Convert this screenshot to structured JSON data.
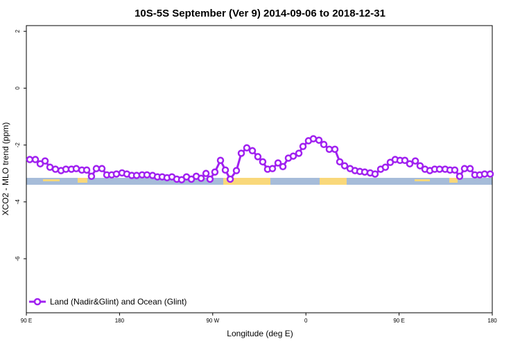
{
  "chart_data": {
    "type": "line",
    "title": "10S-5S September (Ver 9)   2014-09-06 to 2018-12-31",
    "x_label": "Longitude (deg E)",
    "y_label": "XCO2 - MLO trend (ppm)",
    "xlim": [
      90,
      540
    ],
    "ylim": [
      -7.9,
      2.2
    ],
    "xticks": [
      {
        "value": 90,
        "label": "90 E"
      },
      180,
      {
        "value": 270,
        "label": "90 W"
      },
      {
        "value": 360,
        "label": "0"
      },
      {
        "value": 450,
        "label": "90 E"
      },
      180
    ],
    "yticks": [
      2,
      0,
      -2,
      -4,
      -6
    ],
    "legend_position": "lower left",
    "series": [
      {
        "name": "Land (Nadir&Glint) and Ocean (Glint)",
        "color": "#a020f0",
        "x": [
          93.3,
          98.7,
          103.4,
          108.1,
          112.8,
          118.1,
          123.5,
          128.2,
          133.5,
          138.2,
          143.6,
          148.3,
          152.9,
          157.6,
          163.0,
          167.7,
          172.4,
          177.0,
          182.4,
          187.1,
          191.8,
          196.5,
          201.8,
          206.5,
          211.9,
          216.6,
          221.2,
          225.9,
          230.6,
          235.3,
          240.0,
          244.7,
          249.4,
          254.1,
          258.8,
          263.5,
          267.4,
          272.1,
          277.5,
          282.2,
          286.9,
          292.9,
          297.6,
          302.9,
          308.3,
          313.6,
          318.3,
          323.0,
          327.7,
          333.1,
          337.8,
          343.1,
          347.8,
          353.2,
          357.2,
          362.5,
          367.2,
          372.6,
          377.3,
          382.6,
          388.0,
          392.7,
          397.4,
          402.7,
          407.4,
          412.1,
          416.8,
          422.1,
          426.8,
          432.2,
          436.8,
          441.5,
          446.2,
          450.9,
          455.6,
          460.3,
          465.7,
          470.3,
          475.0,
          479.7,
          484.4,
          489.1,
          494.5,
          499.2,
          503.8,
          508.5,
          513.2,
          518.6,
          523.2,
          527.9,
          532.6,
          538.0
        ],
        "values": [
          -2.51,
          -2.51,
          -2.66,
          -2.56,
          -2.78,
          -2.85,
          -2.9,
          -2.85,
          -2.85,
          -2.83,
          -2.88,
          -2.88,
          -3.1,
          -2.83,
          -2.83,
          -3.05,
          -3.05,
          -3.02,
          -2.98,
          -3.02,
          -3.07,
          -3.07,
          -3.05,
          -3.05,
          -3.07,
          -3.12,
          -3.12,
          -3.15,
          -3.12,
          -3.2,
          -3.22,
          -3.12,
          -3.2,
          -3.1,
          -3.17,
          -3.0,
          -3.2,
          -2.95,
          -2.54,
          -2.88,
          -3.2,
          -2.9,
          -2.29,
          -2.1,
          -2.2,
          -2.41,
          -2.59,
          -2.85,
          -2.83,
          -2.63,
          -2.76,
          -2.46,
          -2.39,
          -2.29,
          -2.05,
          -1.85,
          -1.78,
          -1.83,
          -1.98,
          -2.15,
          -2.15,
          -2.59,
          -2.73,
          -2.83,
          -2.9,
          -2.93,
          -2.95,
          -2.98,
          -3.02,
          -2.85,
          -2.78,
          -2.61,
          -2.51,
          -2.54,
          -2.54,
          -2.66,
          -2.56,
          -2.73,
          -2.85,
          -2.9,
          -2.85,
          -2.85,
          -2.85,
          -2.88,
          -2.88,
          -3.1,
          -2.83,
          -2.83,
          -3.05,
          -3.05,
          -3.02,
          -3.02
        ]
      }
    ]
  }
}
